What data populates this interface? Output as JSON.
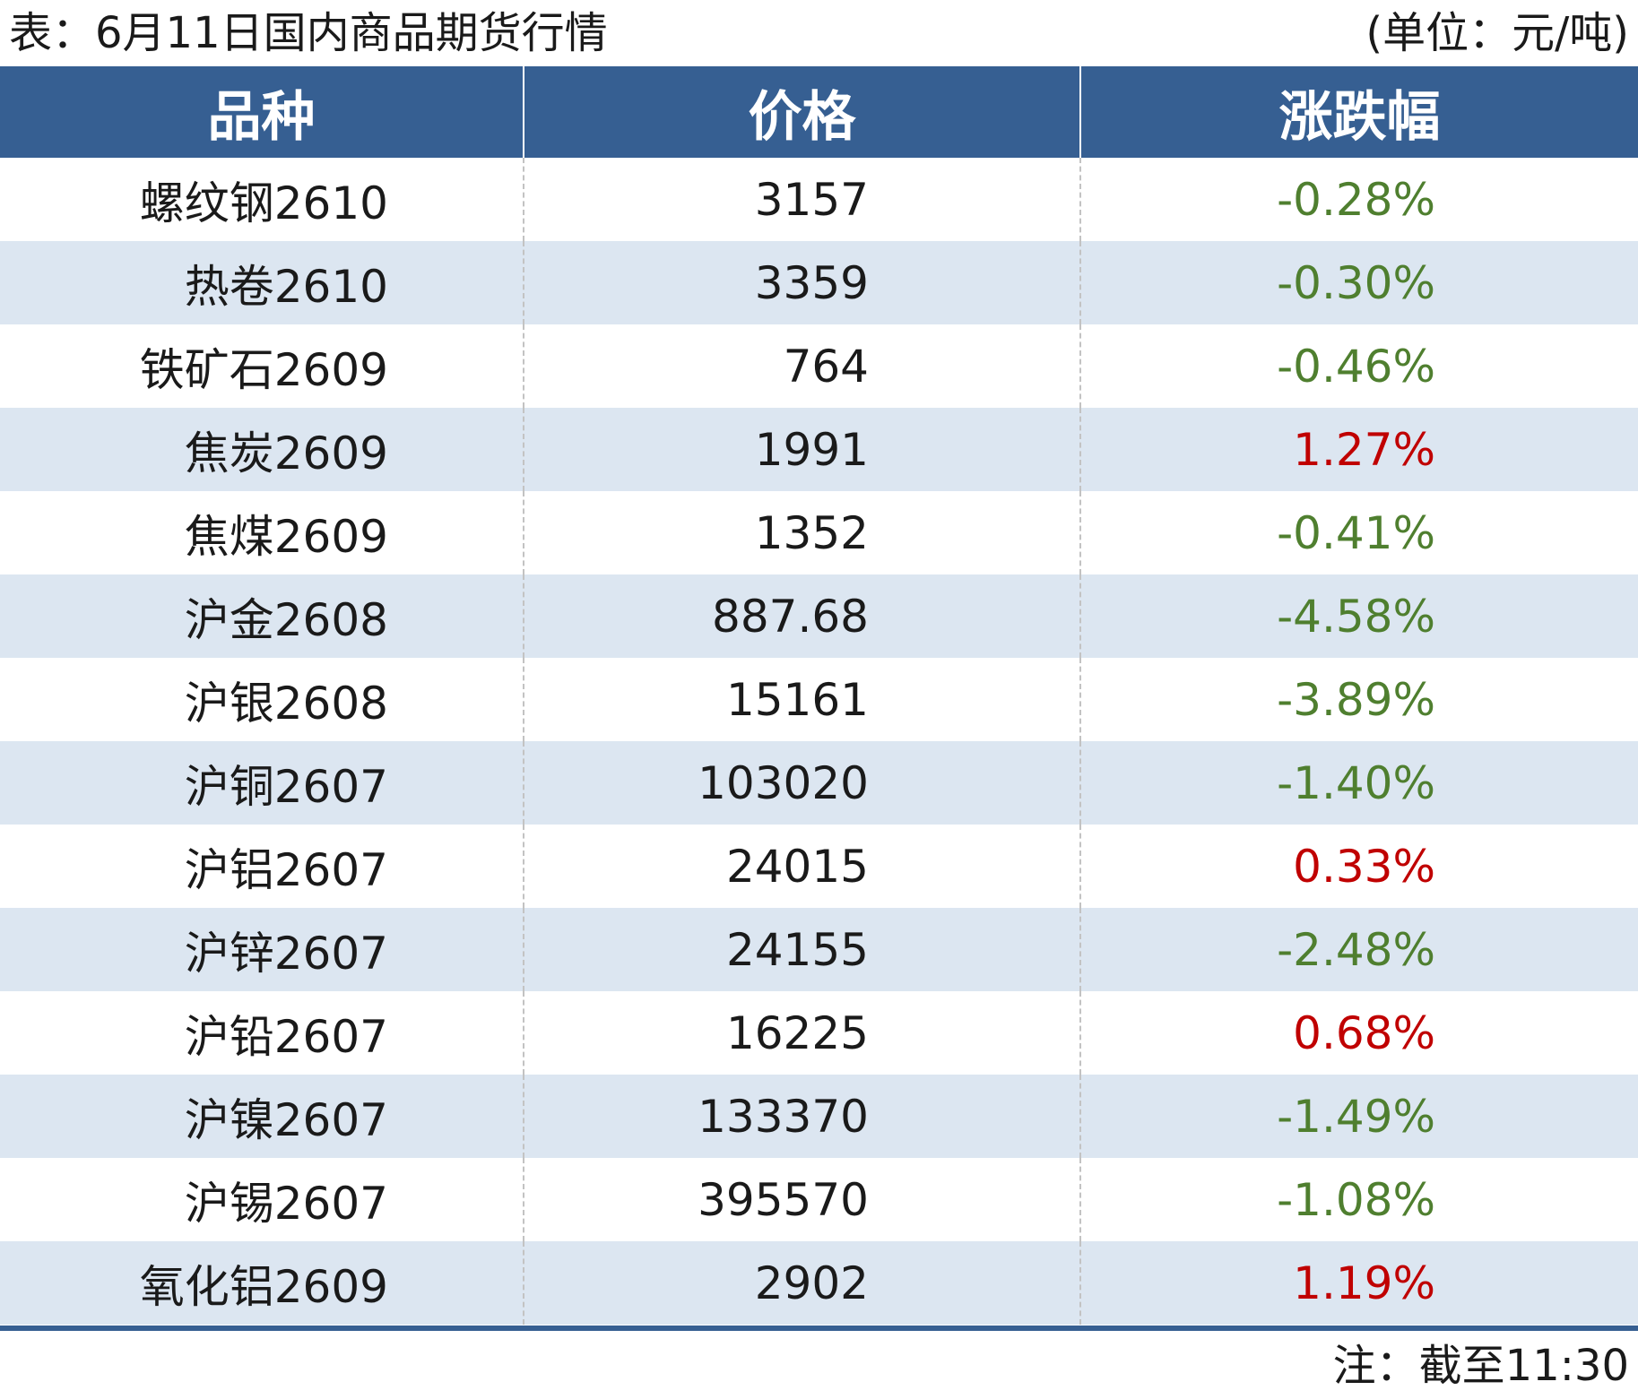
{
  "header": {
    "title": "表：6月11日国内商品期货行情",
    "unit": "(单位：元/吨)"
  },
  "table": {
    "columns": [
      "品种",
      "价格",
      "涨跌幅"
    ],
    "rows": [
      {
        "name": "螺纹钢2610",
        "price": "3157",
        "change": "-0.28%",
        "direction": "down"
      },
      {
        "name": "热卷2610",
        "price": "3359",
        "change": "-0.30%",
        "direction": "down"
      },
      {
        "name": "铁矿石2609",
        "price": "764",
        "change": "-0.46%",
        "direction": "down"
      },
      {
        "name": "焦炭2609",
        "price": "1991",
        "change": "1.27%",
        "direction": "up"
      },
      {
        "name": "焦煤2609",
        "price": "1352",
        "change": "-0.41%",
        "direction": "down"
      },
      {
        "name": "沪金2608",
        "price": "887.68",
        "change": "-4.58%",
        "direction": "down"
      },
      {
        "name": "沪银2608",
        "price": "15161",
        "change": "-3.89%",
        "direction": "down"
      },
      {
        "name": "沪铜2607",
        "price": "103020",
        "change": "-1.40%",
        "direction": "down"
      },
      {
        "name": "沪铝2607",
        "price": "24015",
        "change": "0.33%",
        "direction": "up"
      },
      {
        "name": "沪锌2607",
        "price": "24155",
        "change": "-2.48%",
        "direction": "down"
      },
      {
        "name": "沪铅2607",
        "price": "16225",
        "change": "0.68%",
        "direction": "up"
      },
      {
        "name": "沪镍2607",
        "price": "133370",
        "change": "-1.49%",
        "direction": "down"
      },
      {
        "name": "沪锡2607",
        "price": "395570",
        "change": "-1.08%",
        "direction": "down"
      },
      {
        "name": "氧化铝2609",
        "price": "2902",
        "change": "1.19%",
        "direction": "up"
      }
    ]
  },
  "footer": {
    "note": "注：截至11:30"
  },
  "colors": {
    "header_bg": "#365f92",
    "stripe_bg": "#dce6f1",
    "down": "#4f7f2f",
    "up": "#c00000"
  }
}
